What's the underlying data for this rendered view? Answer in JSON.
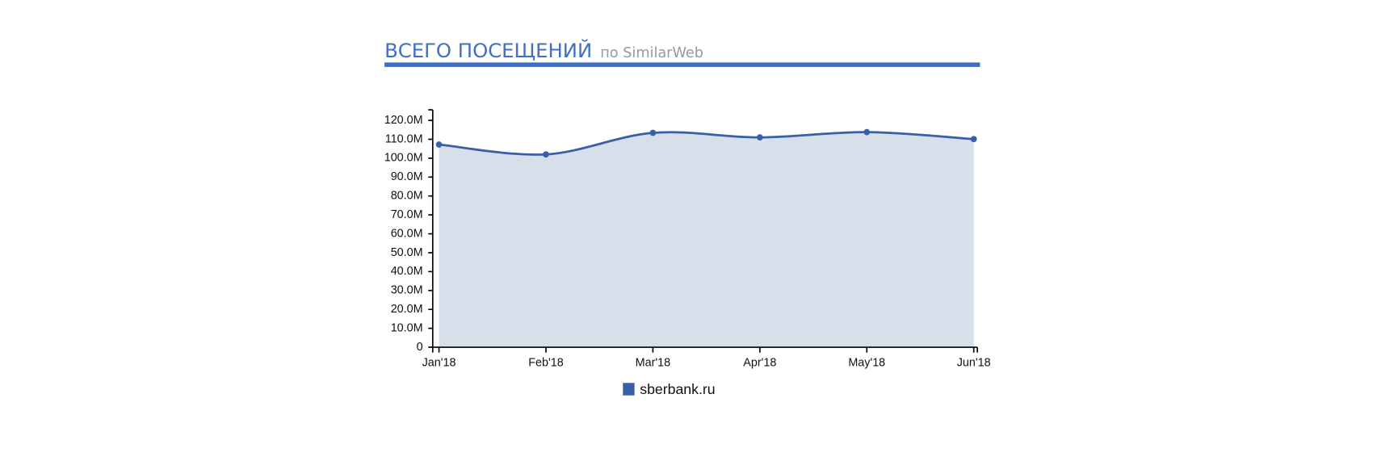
{
  "chart_data": {
    "type": "area",
    "title": "ВСЕГО ПОСЕЩЕНИЙ",
    "subtitle": "по SimilarWeb",
    "categories": [
      "Jan'18",
      "Feb'18",
      "Mar'18",
      "Apr'18",
      "May'18",
      "Jun'18"
    ],
    "series": [
      {
        "name": "sberbank.ru",
        "color": "#3a5ea8",
        "fill": "#d7dfeb",
        "values": [
          107200000,
          102000000,
          113400000,
          111000000,
          113800000,
          110100000
        ]
      }
    ],
    "ylim": [
      0,
      125600000
    ],
    "yticks": [
      0,
      {
        "value": 10000000,
        "label": "10.0M"
      },
      {
        "value": 20000000,
        "label": "20.0M"
      },
      {
        "value": 30000000,
        "label": "30.0M"
      },
      {
        "value": 40000000,
        "label": "40.0M"
      },
      {
        "value": 50000000,
        "label": "50.0M"
      },
      {
        "value": 60000000,
        "label": "60.0M"
      },
      {
        "value": 70000000,
        "label": "70.0M"
      },
      {
        "value": 80000000,
        "label": "80.0M"
      },
      {
        "value": 90000000,
        "label": "90.0M"
      },
      {
        "value": 100000000,
        "label": "100.0M"
      },
      {
        "value": 110000000,
        "label": "110.0M"
      },
      {
        "value": 120000000,
        "label": "120.0M"
      }
    ]
  }
}
